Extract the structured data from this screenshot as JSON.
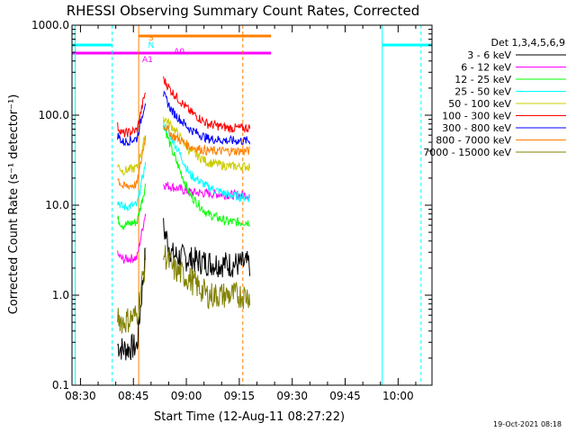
{
  "chart_data": {
    "type": "line",
    "title": "RHESSI Observing Summary Count Rates, Corrected",
    "xlabel": "Start Time (12-Aug-11 08:27:22)",
    "ylabel": "Corrected Count Rate (s⁻¹ detector⁻¹)",
    "yscale": "log",
    "ylim": [
      0.1,
      1000
    ],
    "xlim_minutes": [
      -2.4,
      99.6
    ],
    "x_unit": "minutes after 08:30",
    "y_ticks": [
      "1000.0",
      "100.0",
      "10.0",
      "1.0",
      "0.1"
    ],
    "y_tick_values": [
      1000,
      100,
      10,
      1,
      0.1
    ],
    "x_ticks": [
      "08:30",
      "08:45",
      "09:00",
      "09:15",
      "09:30",
      "09:45",
      "10:00"
    ],
    "x_tick_minutes": [
      0,
      15,
      30,
      45,
      60,
      75,
      90
    ],
    "legend_title": "Det 1,3,4,5,6,9",
    "legend_position": "right",
    "data_gaps_minutes": [
      [
        18.5,
        23.5
      ],
      [
        48,
        72.5
      ]
    ],
    "series": [
      {
        "name": "3 - 6 keV",
        "color": "#000000",
        "x": [
          10.5,
          12,
          16,
          18.5,
          23.5,
          26,
          31,
          36,
          42,
          48
        ],
        "y": [
          0.28,
          0.25,
          0.27,
          3.2,
          5.5,
          2.8,
          2.5,
          2.3,
          2.2,
          2.2
        ]
      },
      {
        "name": "6 - 12 keV",
        "color": "#ff00ff",
        "x": [
          10.5,
          12,
          16,
          18.5,
          23.5,
          26,
          31,
          36,
          42,
          48
        ],
        "y": [
          2.8,
          2.5,
          2.6,
          8.5,
          17,
          16,
          14,
          13.5,
          13,
          13
        ]
      },
      {
        "name": "12 - 25 keV",
        "color": "#00ff00",
        "x": [
          10.5,
          12,
          16,
          18.5,
          23.5,
          26,
          31,
          36,
          42,
          48
        ],
        "y": [
          7.0,
          6.0,
          6.5,
          17,
          80,
          40,
          13,
          8,
          6.5,
          6.5
        ]
      },
      {
        "name": "25 - 50 keV",
        "color": "#00ffff",
        "x": [
          10.5,
          12,
          16,
          18.5,
          23.5,
          26,
          31,
          36,
          42,
          48
        ],
        "y": [
          11,
          9.5,
          10,
          30,
          80,
          55,
          22,
          16,
          13,
          12
        ]
      },
      {
        "name": "50 - 100 keV",
        "color": "#cccc00",
        "x": [
          10.5,
          12,
          16,
          18.5,
          23.5,
          26,
          31,
          36,
          42,
          48
        ],
        "y": [
          28,
          24,
          26,
          60,
          95,
          75,
          40,
          30,
          27,
          27
        ]
      },
      {
        "name": "100 - 300 keV",
        "color": "#ff0000",
        "x": [
          10.5,
          12,
          16,
          18.5,
          23.5,
          26,
          31,
          36,
          42,
          48
        ],
        "y": [
          75,
          62,
          68,
          190,
          250,
          180,
          110,
          80,
          72,
          72
        ]
      },
      {
        "name": "300 - 800 keV",
        "color": "#0000ff",
        "x": [
          10.5,
          12,
          16,
          18.5,
          23.5,
          26,
          31,
          36,
          42,
          48
        ],
        "y": [
          60,
          50,
          55,
          150,
          170,
          110,
          70,
          55,
          52,
          52
        ]
      },
      {
        "name": "800 - 7000 keV",
        "color": "#ff8000",
        "x": [
          10.5,
          12,
          16,
          18.5,
          23.5,
          26,
          31,
          36,
          42,
          48
        ],
        "y": [
          20,
          16,
          17,
          60,
          80,
          60,
          45,
          40,
          40,
          40
        ]
      },
      {
        "name": "7000 - 15000 keV",
        "color": "#808000",
        "x": [
          10.5,
          12,
          16,
          18.5,
          23.5,
          26,
          31,
          36,
          42,
          48
        ],
        "y": [
          0.6,
          0.5,
          0.6,
          2.5,
          3.0,
          2.0,
          1.5,
          1.0,
          1.0,
          1.0
        ]
      }
    ],
    "annotations": [
      {
        "label": "S",
        "color": "#ff8000",
        "minute": 20
      },
      {
        "label": "N",
        "color": "#00ffff",
        "minute": 20
      },
      {
        "label": "A1",
        "color": "#ff00ff",
        "minute": 19
      },
      {
        "label": "A0",
        "color": "#ff00ff",
        "minute": 28
      }
    ],
    "flag_bars": [
      {
        "name": "SAA",
        "color": "#ff8000",
        "start": 16.5,
        "end": 54
      },
      {
        "name": "Night",
        "color": "#00ffff",
        "start": -2.4,
        "end": 9
      },
      {
        "name": "Night",
        "color": "#00ffff",
        "start": 85.5,
        "end": 99.6
      },
      {
        "name": "Attenuator",
        "color": "#ff00ff",
        "start": -2.4,
        "end": 54
      }
    ],
    "footer_date": "19-Oct-2021 08:18"
  }
}
